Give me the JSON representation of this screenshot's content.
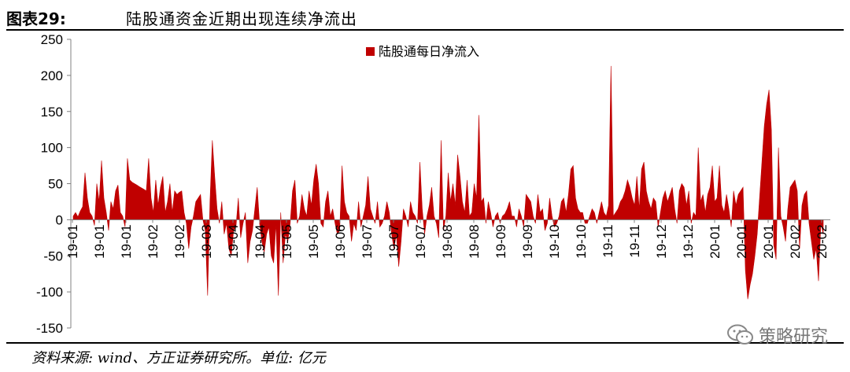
{
  "header": {
    "fig_label": "图表29:",
    "title": "陆股通资金近期出现连续净流出"
  },
  "footer": {
    "source": "资料来源: wind、方正证券研究所。单位: 亿元"
  },
  "watermark": {
    "text": "策略研究",
    "icon": "wechat-icon"
  },
  "colors": {
    "series": "#C00000",
    "axis": "#808080"
  },
  "chart_data": {
    "type": "area",
    "title": "",
    "xlabel": "",
    "ylabel": "",
    "ylim": [
      -150,
      250
    ],
    "yticks": [
      -150,
      -100,
      -50,
      0,
      50,
      100,
      150,
      200,
      250
    ],
    "ytick_labels": [
      "-150",
      "-100",
      "-50",
      "0",
      "50",
      "100",
      "150",
      "200",
      "250"
    ],
    "xtick_labels": [
      "19-01",
      "19-01",
      "19-01",
      "19-02",
      "19-02",
      "19-03",
      "19-04",
      "19-04",
      "19-05",
      "19-05",
      "19-06",
      "19-07",
      "19-07",
      "19-07",
      "19-08",
      "19-08",
      "19-09",
      "19-09",
      "19-10",
      "19-10",
      "19-11",
      "19-11",
      "19-12",
      "19-12",
      "20-01",
      "20-01",
      "20-01",
      "20-02",
      "20-02"
    ],
    "legend": {
      "label": "陆股通每日净流入",
      "position": "top-center"
    },
    "grid": false,
    "series": [
      {
        "name": "陆股通每日净流入",
        "values": [
          5,
          10,
          4,
          12,
          18,
          65,
          30,
          10,
          5,
          -8,
          50,
          25,
          82,
          30,
          10,
          -15,
          25,
          15,
          40,
          48,
          10,
          5,
          -10,
          85,
          55,
          52,
          50,
          48,
          46,
          44,
          42,
          40,
          85,
          30,
          10,
          55,
          20,
          45,
          60,
          10,
          25,
          50,
          10,
          40,
          35,
          38,
          40,
          10,
          -5,
          -40,
          -10,
          5,
          25,
          30,
          35,
          0,
          -15,
          -105,
          25,
          110,
          60,
          15,
          -5,
          25,
          -20,
          -5,
          -40,
          -50,
          -15,
          -10,
          30,
          -25,
          -5,
          10,
          -60,
          -30,
          -15,
          15,
          45,
          -5,
          -30,
          -45,
          -20,
          -10,
          -50,
          -60,
          -5,
          -105,
          10,
          -60,
          -20,
          -30,
          -5,
          40,
          55,
          -5,
          5,
          35,
          15,
          5,
          40,
          20,
          55,
          77,
          50,
          -5,
          -10,
          25,
          40,
          5,
          15,
          -5,
          -20,
          -15,
          75,
          25,
          10,
          5,
          -30,
          -5,
          -15,
          25,
          -10,
          5,
          20,
          60,
          15,
          5,
          -5,
          25,
          -10,
          -5,
          5,
          25,
          10,
          -20,
          -40,
          -20,
          -65,
          -30,
          15,
          5,
          -10,
          25,
          10,
          5,
          -5,
          80,
          15,
          -20,
          5,
          20,
          45,
          5,
          -5,
          -25,
          110,
          -15,
          5,
          65,
          25,
          50,
          20,
          90,
          60,
          25,
          10,
          55,
          5,
          10,
          50,
          30,
          145,
          25,
          30,
          -5,
          25,
          10,
          -10,
          5,
          10,
          -5,
          5,
          8,
          15,
          25,
          5,
          5,
          -10,
          15,
          5,
          -10,
          35,
          30,
          25,
          5,
          -5,
          35,
          10,
          15,
          -15,
          -5,
          30,
          5,
          -10,
          -5,
          5,
          25,
          30,
          10,
          35,
          70,
          75,
          30,
          15,
          10,
          10,
          -5,
          -5,
          5,
          15,
          10,
          -5,
          10,
          25,
          10,
          5,
          20,
          213,
          5,
          10,
          15,
          25,
          30,
          40,
          55,
          45,
          30,
          20,
          60,
          15,
          70,
          80,
          40,
          25,
          15,
          30,
          25,
          -10,
          10,
          30,
          40,
          25,
          35,
          45,
          15,
          -5,
          40,
          50,
          45,
          20,
          40,
          -5,
          10,
          5,
          100,
          25,
          35,
          10,
          35,
          45,
          75,
          25,
          30,
          75,
          20,
          10,
          35,
          15,
          -10,
          40,
          20,
          35,
          40,
          45,
          -70,
          -110,
          -90,
          -75,
          -50,
          -20,
          30,
          80,
          130,
          160,
          180,
          125,
          -35,
          -55,
          100,
          5,
          -10,
          -30,
          15,
          45,
          50,
          55,
          40,
          -40,
          20,
          35,
          40,
          -5,
          -30,
          -55,
          -40,
          -85,
          -5,
          -20
        ]
      }
    ]
  }
}
